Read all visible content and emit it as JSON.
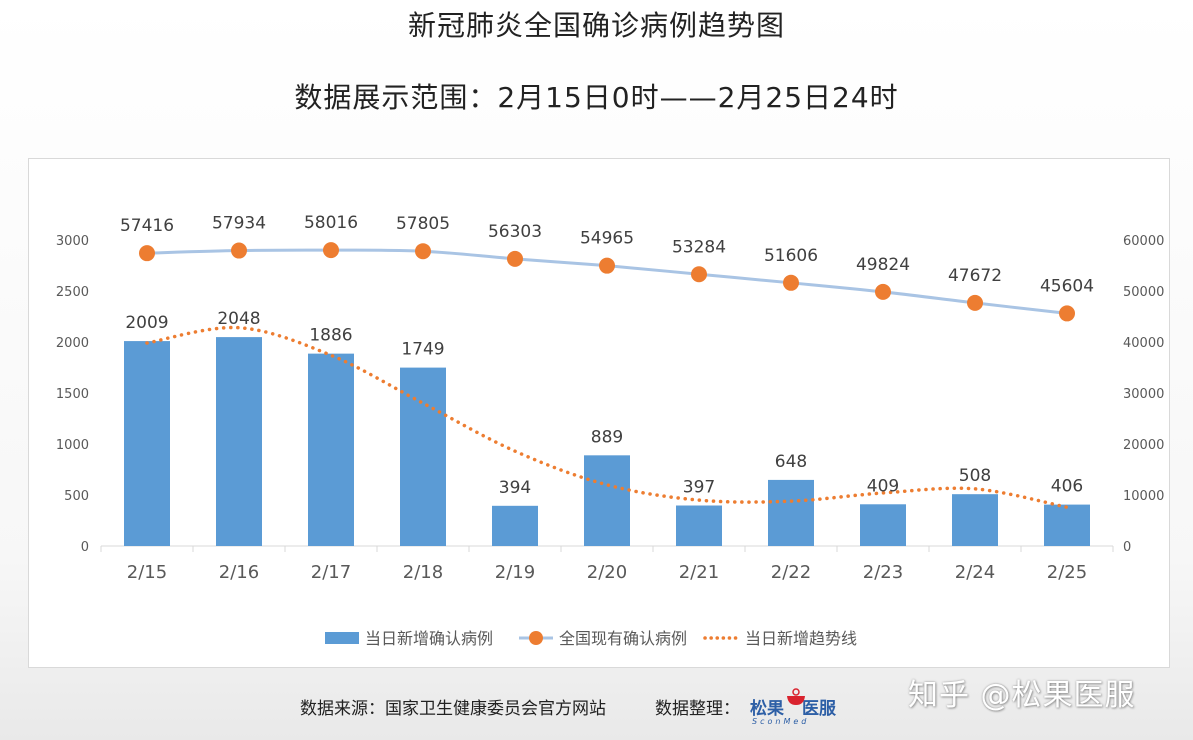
{
  "title": "新冠肺炎全国确诊病例趋势图",
  "subtitle": "数据展示范围：2月15日0时——2月25日24时",
  "chart_data": {
    "type": "bar",
    "categories": [
      "2/15",
      "2/16",
      "2/17",
      "2/18",
      "2/19",
      "2/20",
      "2/21",
      "2/22",
      "2/23",
      "2/24",
      "2/25"
    ],
    "series": [
      {
        "name": "当日新增确认病例",
        "type": "bar",
        "axis": "left",
        "color": "#5b9bd5",
        "values": [
          2009,
          2048,
          1886,
          1749,
          394,
          889,
          397,
          648,
          409,
          508,
          406
        ]
      },
      {
        "name": "全国现有确认病例",
        "type": "line",
        "axis": "right",
        "color": "#ed7d31",
        "line_color": "#a9c4e4",
        "values": [
          57416,
          57934,
          58016,
          57805,
          56303,
          54965,
          53284,
          51606,
          49824,
          47672,
          45604
        ]
      },
      {
        "name": "当日新增趋势线",
        "type": "trendline",
        "axis": "left",
        "color": "#ed7d31",
        "style": "dotted",
        "values": [
          1990,
          2140,
          1870,
          1400,
          930,
          600,
          450,
          440,
          520,
          560,
          380
        ]
      }
    ],
    "y_left": {
      "ylim": [
        0,
        3000
      ],
      "ticks": [
        0,
        500,
        1000,
        1500,
        2000,
        2500,
        3000
      ]
    },
    "y_right": {
      "ylim": [
        0,
        60000
      ],
      "ticks": [
        0,
        10000,
        20000,
        30000,
        40000,
        50000,
        60000
      ]
    },
    "grid": false,
    "legend": {
      "position": "bottom"
    }
  },
  "legend_labels": [
    "当日新增确认病例",
    "全国现有确认病例",
    "当日新增趋势线"
  ],
  "footer": {
    "source": "数据来源：国家卫生健康委员会官方网站",
    "organizer_label": "数据整理：",
    "logo_text_1": "松果",
    "logo_text_2": "医服",
    "logo_sub": "SconMed"
  },
  "watermark": "知乎 @松果医服"
}
